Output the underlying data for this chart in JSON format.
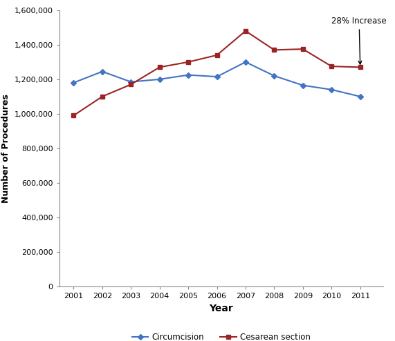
{
  "years": [
    2001,
    2002,
    2003,
    2004,
    2005,
    2006,
    2007,
    2008,
    2009,
    2010,
    2011
  ],
  "circumcision": [
    1180000,
    1245000,
    1185000,
    1200000,
    1225000,
    1215000,
    1300000,
    1220000,
    1165000,
    1140000,
    1100000
  ],
  "cesarean": [
    990000,
    1100000,
    1170000,
    1270000,
    1300000,
    1340000,
    1480000,
    1370000,
    1375000,
    1275000,
    1270000
  ],
  "circumcision_color": "#4472C4",
  "cesarean_color": "#9B2323",
  "ylim": [
    0,
    1600000
  ],
  "yticks": [
    0,
    200000,
    400000,
    600000,
    800000,
    1000000,
    1200000,
    1400000,
    1600000
  ],
  "xlabel": "Year",
  "ylabel": "Number of Procedures",
  "annotation_text": "28% Increase",
  "legend_circumcision": "Circumcision",
  "legend_cesarean": "Cesarean section",
  "background_color": "#ffffff"
}
